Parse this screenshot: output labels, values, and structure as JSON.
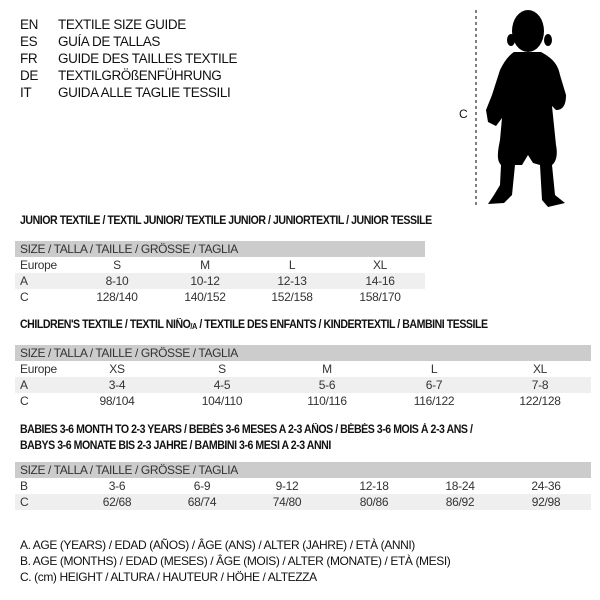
{
  "header": {
    "lines": [
      {
        "code": "EN",
        "title": "TEXTILE SIZE GUIDE"
      },
      {
        "code": "ES",
        "title": "GUÍA DE TALLAS"
      },
      {
        "code": "FR",
        "title": "GUIDE DES TAILLES TEXTILE"
      },
      {
        "code": "DE",
        "title": "TEXTILGRÖßENFÜHRUNG"
      },
      {
        "code": "IT",
        "title": "GUIDA ALLE TAGLIE TESSILI"
      }
    ]
  },
  "figure": {
    "measure_label": "C",
    "icon": "child-silhouette-icon"
  },
  "junior": {
    "heading": "JUNIOR TEXTILE / TEXTIL JUNIOR/ TEXTILE JUNIOR / JUNIORTEXTIL / JUNIOR TESSILE",
    "size_header": "SIZE / TALLA / TAILLE / GRÖSSE / TAGLIA",
    "rows": [
      {
        "label": "Europe",
        "values": [
          "S",
          "M",
          "L",
          "XL"
        ]
      },
      {
        "label": "A",
        "values": [
          "8-10",
          "10-12",
          "12-13",
          "14-16"
        ]
      },
      {
        "label": "C",
        "values": [
          "128/140",
          "140/152",
          "152/158",
          "158/170"
        ]
      }
    ]
  },
  "children": {
    "heading_pre": "CHILDREN'S TEXTILE / TEXTIL NIÑO",
    "heading_sub": "/A",
    "heading_post": " / TEXTILE DES ENFANTS / KINDERTEXTIL / BAMBINI TESSILE",
    "size_header": "SIZE / TALLA / TAILLE / GRÖSSE / TAGLIA",
    "rows": [
      {
        "label": "Europe",
        "values": [
          "XS",
          "S",
          "M",
          "L",
          "XL"
        ]
      },
      {
        "label": "A",
        "values": [
          "3-4",
          "4-5",
          "5-6",
          "6-7",
          "7-8"
        ]
      },
      {
        "label": "C",
        "values": [
          "98/104",
          "104/110",
          "110/116",
          "116/122",
          "122/128"
        ]
      }
    ]
  },
  "babies": {
    "heading_line1": "BABIES 3-6 MONTH TO 2-3 YEARS / BEBÉS 3-6 MESES A 2-3 AÑOS / BÉBÉS 3-6 MOIS À 2-3 ANS /",
    "heading_line2": "BABYS 3-6 MONATE BIS 2-3 JAHRE / BAMBINI 3-6 MESI A 2-3 ANNI",
    "size_header": "SIZE / TALLA / TAILLE / GRÖSSE / TAGLIA",
    "rows": [
      {
        "label": "B",
        "values": [
          "3-6",
          "6-9",
          "9-12",
          "12-18",
          "18-24",
          "24-36"
        ]
      },
      {
        "label": "C",
        "values": [
          "62/68",
          "68/74",
          "74/80",
          "80/86",
          "86/92",
          "92/98"
        ]
      }
    ]
  },
  "legend": [
    "A. AGE (YEARS) / EDAD (AÑOS) / ÂGE (ANS) / ALTER (JAHRE) / ETÀ (ANNI)",
    "B. AGE (MONTHS) / EDAD (MESES) / ÂGE (MOIS) / ALTER (MONATE) / ETÀ (MESI)",
    "C. (cm) HEIGHT / ALTURA / HAUTEUR / HÖHE / ALTEZZA"
  ],
  "colors": {
    "header_bg": "#cccccc",
    "shade_bg": "#efefef",
    "text": "#111111"
  }
}
